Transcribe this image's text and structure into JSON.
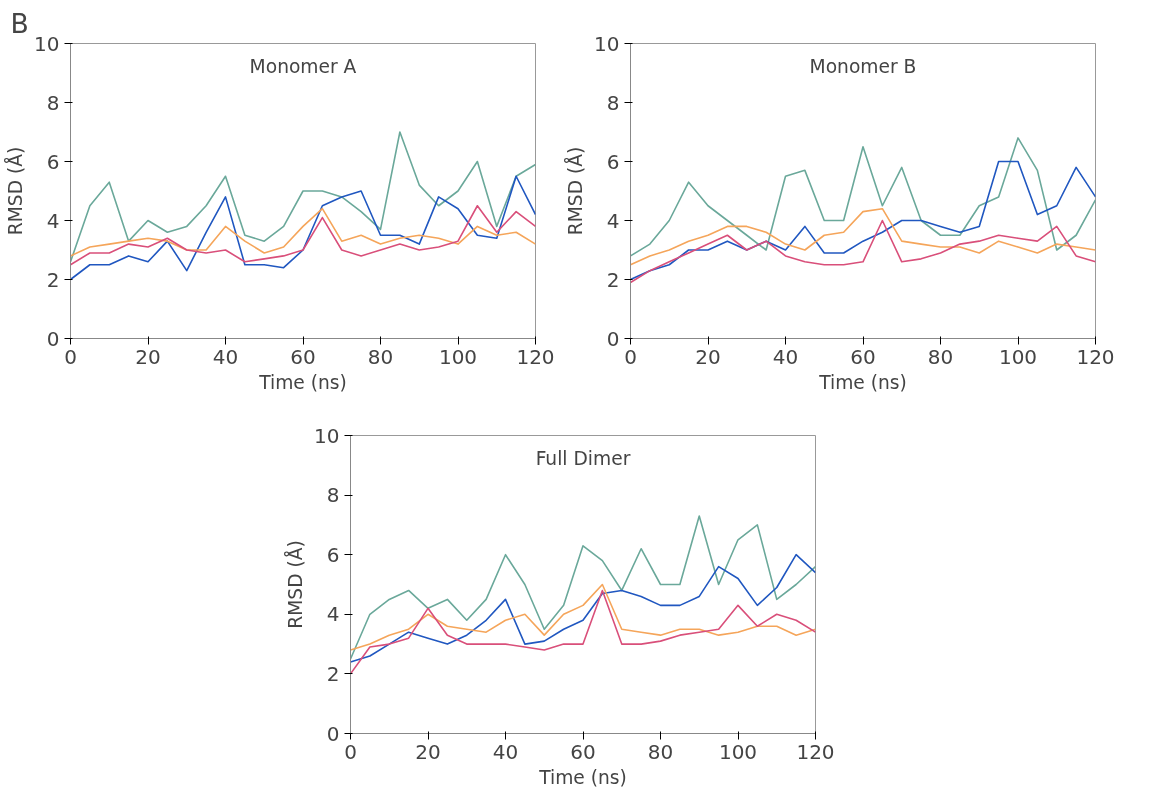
{
  "chart_data": [
    {
      "type": "line",
      "title": "Monomer A",
      "xlabel": "Time (ns)",
      "ylabel": "RMSD (Å)",
      "annotations": [
        "B"
      ],
      "xlim": [
        0,
        120
      ],
      "ylim": [
        0,
        10
      ],
      "xticks": [
        0,
        20,
        40,
        60,
        80,
        100,
        120
      ],
      "yticks": [
        0,
        2,
        4,
        6,
        8,
        10
      ],
      "grid": false,
      "line_style": "solid",
      "marker": "none",
      "x": [
        0,
        5,
        10,
        15,
        20,
        25,
        30,
        35,
        40,
        45,
        50,
        55,
        60,
        65,
        70,
        75,
        80,
        85,
        90,
        95,
        100,
        105,
        110,
        115,
        120
      ],
      "series": [
        {
          "color": "#6aa89a",
          "values": [
            2.6,
            4.5,
            5.3,
            3.3,
            4.0,
            3.6,
            3.8,
            4.5,
            5.5,
            3.5,
            3.3,
            3.8,
            5.0,
            5.0,
            4.8,
            4.3,
            3.7,
            7.0,
            5.2,
            4.5,
            5.0,
            6.0,
            3.8,
            5.5,
            5.9
          ]
        },
        {
          "color": "#2057c0",
          "values": [
            2.0,
            2.5,
            2.5,
            2.8,
            2.6,
            3.3,
            2.3,
            3.6,
            4.8,
            2.5,
            2.5,
            2.4,
            3.0,
            4.5,
            4.8,
            5.0,
            3.5,
            3.5,
            3.2,
            4.8,
            4.4,
            3.5,
            3.4,
            5.5,
            4.2
          ]
        },
        {
          "color": "#f5a55a",
          "values": [
            2.8,
            3.1,
            3.2,
            3.3,
            3.4,
            3.3,
            3.0,
            3.0,
            3.8,
            3.3,
            2.9,
            3.1,
            3.8,
            4.4,
            3.3,
            3.5,
            3.2,
            3.4,
            3.5,
            3.4,
            3.2,
            3.8,
            3.5,
            3.6,
            3.2
          ]
        },
        {
          "color": "#d94f7a",
          "values": [
            2.5,
            2.9,
            2.9,
            3.2,
            3.1,
            3.4,
            3.0,
            2.9,
            3.0,
            2.6,
            2.7,
            2.8,
            3.0,
            4.1,
            3.0,
            2.8,
            3.0,
            3.2,
            3.0,
            3.1,
            3.3,
            4.5,
            3.6,
            4.3,
            3.8
          ]
        }
      ]
    },
    {
      "type": "line",
      "title": "Monomer B",
      "xlabel": "Time (ns)",
      "ylabel": "RMSD (Å)",
      "xlim": [
        0,
        120
      ],
      "ylim": [
        0,
        10
      ],
      "xticks": [
        0,
        20,
        40,
        60,
        80,
        100,
        120
      ],
      "yticks": [
        0,
        2,
        4,
        6,
        8,
        10
      ],
      "grid": false,
      "line_style": "solid",
      "marker": "none",
      "x": [
        0,
        5,
        10,
        15,
        20,
        25,
        30,
        35,
        40,
        45,
        50,
        55,
        60,
        65,
        70,
        75,
        80,
        85,
        90,
        95,
        100,
        105,
        110,
        115,
        120
      ],
      "series": [
        {
          "color": "#6aa89a",
          "values": [
            2.8,
            3.2,
            4.0,
            5.3,
            4.5,
            4.0,
            3.5,
            3.0,
            5.5,
            5.7,
            4.0,
            4.0,
            6.5,
            4.5,
            5.8,
            4.0,
            3.5,
            3.5,
            4.5,
            4.8,
            6.8,
            5.7,
            3.0,
            3.5,
            4.7
          ]
        },
        {
          "color": "#2057c0",
          "values": [
            2.0,
            2.3,
            2.5,
            3.0,
            3.0,
            3.3,
            3.0,
            3.3,
            3.0,
            3.8,
            2.9,
            2.9,
            3.3,
            3.6,
            4.0,
            4.0,
            3.8,
            3.6,
            3.8,
            6.0,
            6.0,
            4.2,
            4.5,
            5.8,
            4.8
          ]
        },
        {
          "color": "#f5a55a",
          "values": [
            2.5,
            2.8,
            3.0,
            3.3,
            3.5,
            3.8,
            3.8,
            3.6,
            3.2,
            3.0,
            3.5,
            3.6,
            4.3,
            4.4,
            3.3,
            3.2,
            3.1,
            3.1,
            2.9,
            3.3,
            3.1,
            2.9,
            3.2,
            3.1,
            3.0
          ]
        },
        {
          "color": "#d94f7a",
          "values": [
            1.9,
            2.3,
            2.6,
            2.9,
            3.2,
            3.5,
            3.0,
            3.3,
            2.8,
            2.6,
            2.5,
            2.5,
            2.6,
            4.0,
            2.6,
            2.7,
            2.9,
            3.2,
            3.3,
            3.5,
            3.4,
            3.3,
            3.8,
            2.8,
            2.6
          ]
        }
      ]
    },
    {
      "type": "line",
      "title": "Full Dimer",
      "xlabel": "Time (ns)",
      "ylabel": "RMSD (Å)",
      "xlim": [
        0,
        120
      ],
      "ylim": [
        0,
        10
      ],
      "xticks": [
        0,
        20,
        40,
        60,
        80,
        100,
        120
      ],
      "yticks": [
        0,
        2,
        4,
        6,
        8,
        10
      ],
      "grid": false,
      "line_style": "solid",
      "marker": "none",
      "x": [
        0,
        5,
        10,
        15,
        20,
        25,
        30,
        35,
        40,
        45,
        50,
        55,
        60,
        65,
        70,
        75,
        80,
        85,
        90,
        95,
        100,
        105,
        110,
        115,
        120
      ],
      "series": [
        {
          "color": "#6aa89a",
          "values": [
            2.5,
            4.0,
            4.5,
            4.8,
            4.2,
            4.5,
            3.8,
            4.5,
            6.0,
            5.0,
            3.5,
            4.3,
            6.3,
            5.8,
            4.8,
            6.2,
            5.0,
            5.0,
            7.3,
            5.0,
            6.5,
            7.0,
            4.5,
            5.0,
            5.6
          ]
        },
        {
          "color": "#2057c0",
          "values": [
            2.4,
            2.6,
            3.0,
            3.4,
            3.2,
            3.0,
            3.3,
            3.8,
            4.5,
            3.0,
            3.1,
            3.5,
            3.8,
            4.7,
            4.8,
            4.6,
            4.3,
            4.3,
            4.6,
            5.6,
            5.2,
            4.3,
            4.9,
            6.0,
            5.4
          ]
        },
        {
          "color": "#f5a55a",
          "values": [
            2.8,
            3.0,
            3.3,
            3.5,
            4.0,
            3.6,
            3.5,
            3.4,
            3.8,
            4.0,
            3.3,
            4.0,
            4.3,
            5.0,
            3.5,
            3.4,
            3.3,
            3.5,
            3.5,
            3.3,
            3.4,
            3.6,
            3.6,
            3.3,
            3.5
          ]
        },
        {
          "color": "#d94f7a",
          "values": [
            2.0,
            2.9,
            3.0,
            3.2,
            4.2,
            3.3,
            3.0,
            3.0,
            3.0,
            2.9,
            2.8,
            3.0,
            3.0,
            4.8,
            3.0,
            3.0,
            3.1,
            3.3,
            3.4,
            3.5,
            4.3,
            3.6,
            4.0,
            3.8,
            3.4
          ]
        }
      ]
    }
  ]
}
